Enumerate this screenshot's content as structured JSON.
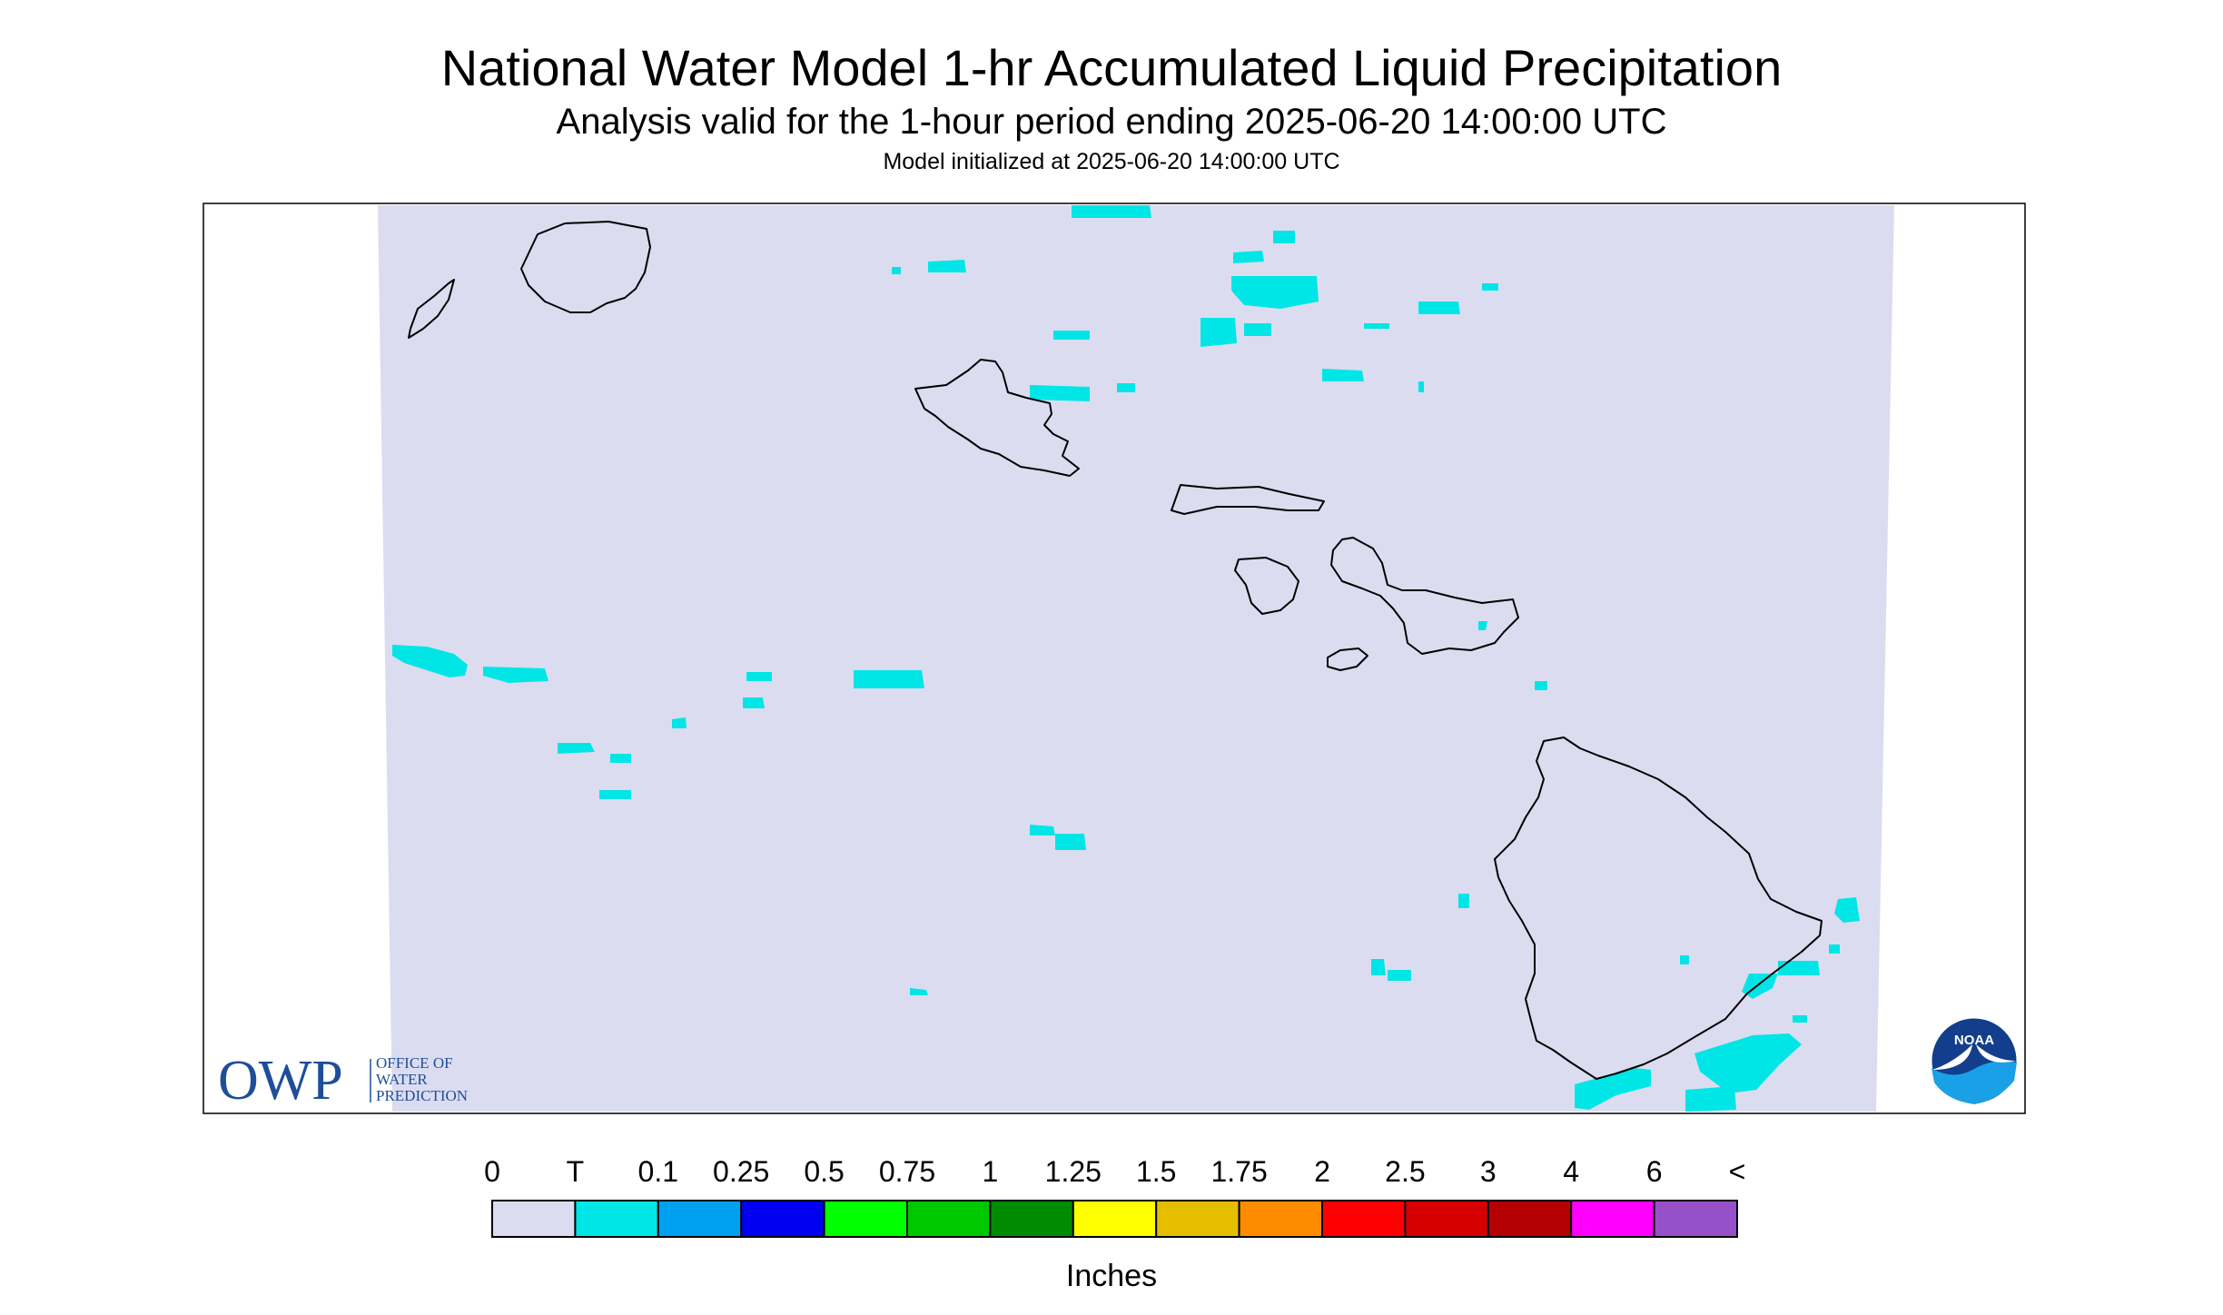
{
  "title": "National Water Model 1-hr Accumulated Liquid Precipitation",
  "subtitle": "Analysis valid for the 1-hour period ending 2025-06-20 14:00:00 UTC",
  "init_line": "Model initialized at 2025-06-20 14:00:00 UTC",
  "logo": {
    "owp_text": "OWP",
    "office_lines": [
      "OFFICE OF",
      "WATER",
      "PREDICTION"
    ],
    "noaa_text": "NOAA"
  },
  "colors": {
    "no_precip": "#dcdcf0",
    "coast": "#000000",
    "precip_trace": "#00e6e6",
    "owp_blue": "#1f4e99",
    "noaa_dark": "#123e8c",
    "noaa_light": "#1aa0e6"
  },
  "legend": {
    "labels": [
      "0",
      "T",
      "0.1",
      "0.25",
      "0.5",
      "0.75",
      "1",
      "1.25",
      "1.5",
      "1.75",
      "2",
      "2.5",
      "3",
      "4",
      "6",
      "<"
    ],
    "colors": [
      "#dcdcf0",
      "#00e6e6",
      "#00a0f0",
      "#0000f0",
      "#00ff00",
      "#00c800",
      "#008c00",
      "#ffff00",
      "#e6be00",
      "#ff8c00",
      "#ff0000",
      "#d70000",
      "#b40000",
      "#ff00ff",
      "#9650c8"
    ],
    "unit": "Inches"
  }
}
